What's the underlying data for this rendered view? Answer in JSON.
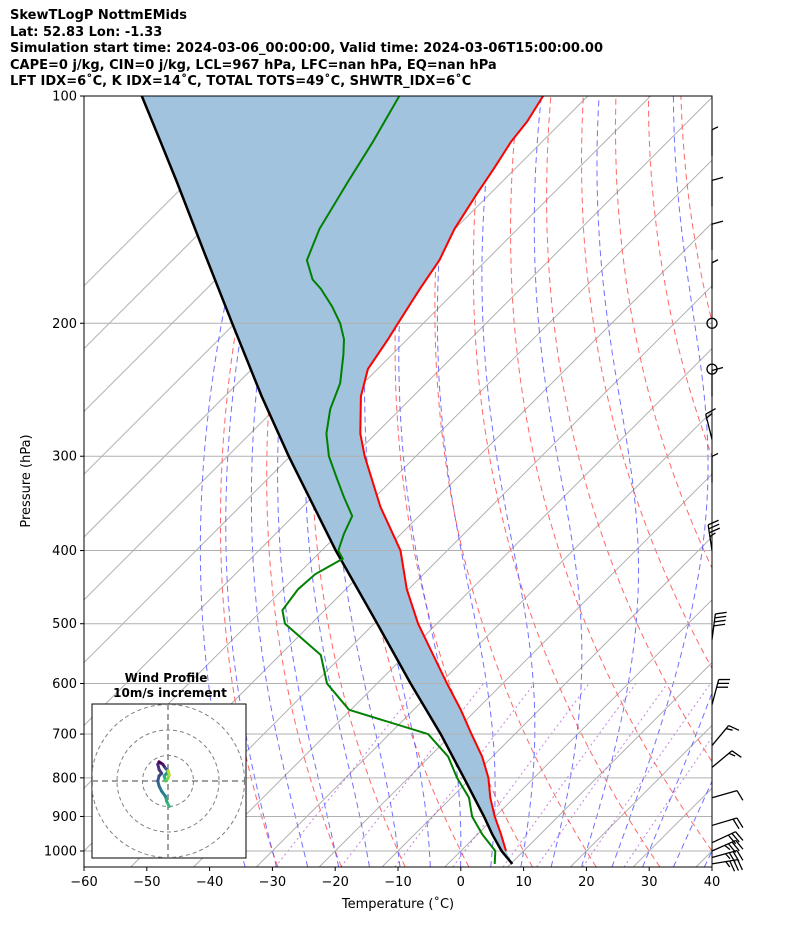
{
  "header": {
    "line1": "SkewTLogP NottmEMids",
    "line2": "Lat: 52.83   Lon: -1.33",
    "line3": "Simulation start time: 2024-03-06_00:00:00, Valid time: 2024-03-06T15:00:00.00",
    "line4": "CAPE=0 j/kg, CIN=0 j/kg, LCL=967 hPa, LFC=nan hPa, EQ=nan hPa",
    "line5": "LFT IDX=6˚C, K IDX=14˚C, TOTAL TOTS=49˚C, SHWTR_IDX=6˚C"
  },
  "colors": {
    "temperature": "#ff0000",
    "dewpoint": "#008000",
    "parcel": "#000000",
    "cape_fill": "#a1c3de",
    "isotherm": "#b0b0b0",
    "dry_adiabat": "#ff4d4d",
    "moist_adiabat": "#4d4dff",
    "mixing_ratio": "#9932cc",
    "hodo_ring": "#808080"
  },
  "chart_data": [
    {
      "type": "line",
      "chart": "skew-T log-P",
      "xlabel": "Temperature (˚C)",
      "ylabel": "Pressure (hPa)",
      "xlim": [
        -60,
        40
      ],
      "ylim": [
        1050,
        100
      ],
      "y_scale": "log",
      "x_ticks": [
        "−60",
        "−50",
        "−40",
        "−30",
        "−20",
        "−10",
        "0",
        "10",
        "20",
        "30",
        "40"
      ],
      "y_ticks": [
        "100",
        "200",
        "300",
        "400",
        "500",
        "600",
        "700",
        "800",
        "900",
        "1000"
      ],
      "series": [
        {
          "role": "temperature",
          "x_axis_position_at_pressure": [
            [
              1000,
              7.2
            ],
            [
              950,
              6.4
            ],
            [
              900,
              5.4
            ],
            [
              850,
              4.7
            ],
            [
              800,
              4.4
            ],
            [
              750,
              3.4
            ],
            [
              700,
              1.7
            ],
            [
              650,
              0
            ],
            [
              600,
              -2.2
            ],
            [
              550,
              -4.4
            ],
            [
              500,
              -6.8
            ],
            [
              450,
              -8.6
            ],
            [
              400,
              -9.6
            ],
            [
              350,
              -12.8
            ],
            [
              300,
              -15.3
            ],
            [
              280,
              -16
            ],
            [
              250,
              -15.9
            ],
            [
              230,
              -14.8
            ],
            [
              210,
              -11.6
            ],
            [
              200,
              -10
            ],
            [
              180,
              -6.5
            ],
            [
              165,
              -3.4
            ],
            [
              150,
              -1
            ],
            [
              135,
              2.5
            ],
            [
              125,
              5.2
            ],
            [
              115,
              8
            ],
            [
              108,
              10.6
            ],
            [
              100,
              13.1
            ]
          ]
        },
        {
          "role": "dewpoint",
          "x_axis_position_at_pressure": [
            [
              1040,
              5.4
            ],
            [
              1000,
              5.5
            ],
            [
              950,
              3.4
            ],
            [
              900,
              1.8
            ],
            [
              850,
              1.3
            ],
            [
              800,
              -0.6
            ],
            [
              750,
              -2
            ],
            [
              700,
              -5.2
            ],
            [
              650,
              -17.8
            ],
            [
              600,
              -21.3
            ],
            [
              550,
              -22.3
            ],
            [
              500,
              -28
            ],
            [
              480,
              -28.4
            ],
            [
              450,
              -25.9
            ],
            [
              430,
              -23.2
            ],
            [
              410,
              -18.8
            ],
            [
              400,
              -19.5
            ],
            [
              380,
              -18.6
            ],
            [
              360,
              -17.3
            ],
            [
              340,
              -18.6
            ],
            [
              320,
              -19.8
            ],
            [
              300,
              -21
            ],
            [
              280,
              -21.4
            ],
            [
              260,
              -20.8
            ],
            [
              240,
              -19.2
            ],
            [
              220,
              -18.7
            ],
            [
              210,
              -18.6
            ],
            [
              200,
              -19.2
            ],
            [
              190,
              -20.5
            ],
            [
              180,
              -22.3
            ],
            [
              175,
              -23.6
            ],
            [
              165,
              -24.5
            ],
            [
              150,
              -22.5
            ],
            [
              130,
              -18
            ],
            [
              115,
              -14
            ],
            [
              100,
              -9.8
            ]
          ]
        },
        {
          "role": "parcel",
          "x_axis_position_at_pressure": [
            [
              1040,
              8.2
            ],
            [
              1000,
              6.5
            ],
            [
              950,
              5
            ],
            [
              900,
              3.7
            ],
            [
              800,
              0.5
            ],
            [
              700,
              -3.2
            ],
            [
              600,
              -8
            ],
            [
              500,
              -13.3
            ],
            [
              400,
              -19.9
            ],
            [
              300,
              -27.4
            ],
            [
              250,
              -31.7
            ],
            [
              200,
              -36.4
            ],
            [
              160,
              -41
            ],
            [
              130,
              -45.2
            ],
            [
              115,
              -47.8
            ],
            [
              100,
              -50.8
            ]
          ]
        }
      ],
      "shaded_region": "between parcel and temperature"
    },
    {
      "type": "scatter",
      "title": "Wind Profile",
      "subtitle": "10m/s increment",
      "ring_radii_ms": [
        10,
        20,
        30
      ],
      "hodograph_uv_ms": [
        [
          0.5,
          -10
        ],
        [
          -0.5,
          -8
        ],
        [
          -1,
          -6
        ],
        [
          -2.5,
          -4
        ],
        [
          -3.5,
          -2
        ],
        [
          -4,
          0
        ],
        [
          -3.5,
          2
        ],
        [
          -2.5,
          3
        ],
        [
          -3.5,
          4.5
        ],
        [
          -4,
          6.5
        ],
        [
          -3.5,
          7.5
        ],
        [
          -2,
          6.5
        ],
        [
          -1,
          5
        ],
        [
          0,
          4
        ],
        [
          -0.5,
          3
        ],
        [
          -1.5,
          2
        ],
        [
          -1,
          0
        ],
        [
          0,
          1
        ],
        [
          0.5,
          2.5
        ],
        [
          0,
          4
        ]
      ]
    }
  ],
  "wind_barbs": [
    {
      "pressure": 1040,
      "u": -18,
      "v": -3
    },
    {
      "pressure": 1020,
      "u": -18,
      "v": -5
    },
    {
      "pressure": 1000,
      "u": -18,
      "v": -8
    },
    {
      "pressure": 975,
      "u": -15,
      "v": -7
    },
    {
      "pressure": 925,
      "u": -10,
      "v": -3
    },
    {
      "pressure": 850,
      "u": -7,
      "v": -2
    },
    {
      "pressure": 775,
      "u": -6,
      "v": -5
    },
    {
      "pressure": 725,
      "u": -5,
      "v": -6
    },
    {
      "pressure": 640,
      "u": -4,
      "v": -15
    },
    {
      "pressure": 525,
      "u": -3,
      "v": -23
    },
    {
      "pressure": 400,
      "u": 3,
      "v": -20
    },
    {
      "pressure": 325,
      "u": 0,
      "v": -5
    },
    {
      "pressure": 285,
      "u": 2,
      "v": -8
    },
    {
      "pressure": 250,
      "u": 0,
      "v": -6
    },
    {
      "pressure": 230,
      "u": 0,
      "v": 0
    },
    {
      "pressure": 200,
      "u": 0,
      "v": 0
    },
    {
      "pressure": 180,
      "u": 0,
      "v": -5
    },
    {
      "pressure": 160,
      "u": 0,
      "v": -7
    },
    {
      "pressure": 140,
      "u": 0,
      "v": -6
    },
    {
      "pressure": 120,
      "u": 0,
      "v": -5
    }
  ]
}
